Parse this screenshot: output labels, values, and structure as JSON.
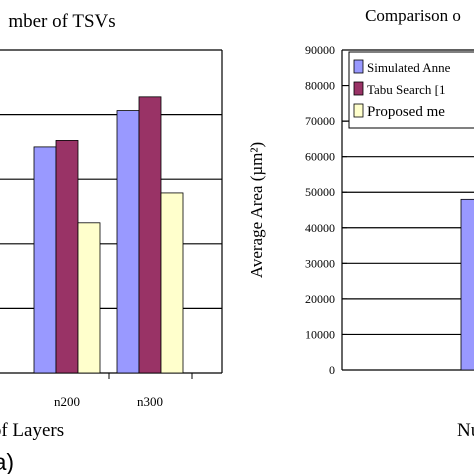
{
  "colors": {
    "series1": "#9999ff",
    "series2": "#993366",
    "series3": "#ffffcc",
    "grid": "#000000"
  },
  "chart_data": [
    {
      "type": "bar",
      "title": "mber of TSVs",
      "xlabel": "of Layers",
      "ylabel": "",
      "categories": [
        "n200",
        "n300"
      ],
      "series": [
        {
          "values": [
            2800,
            3250
          ]
        },
        {
          "values": [
            2880,
            3420
          ]
        },
        {
          "values": [
            1860,
            2230
          ]
        }
      ],
      "ylim": [
        0,
        4000
      ],
      "grid": true
    },
    {
      "type": "bar",
      "title": "Comparison o",
      "xlabel": "Nu",
      "ylabel": "Average Area (µm²)",
      "yticks": [
        "0",
        "10000",
        "20000",
        "30000",
        "40000",
        "50000",
        "60000",
        "70000",
        "80000",
        "90000"
      ],
      "series": [
        {
          "name": "Simulated Anne",
          "values": [
            48000
          ]
        },
        {
          "name": "Tabu Search [1",
          "values": []
        },
        {
          "name": "Proposed me",
          "values": []
        }
      ],
      "ylim": [
        0,
        90000
      ],
      "legend": "top-right",
      "grid": true
    }
  ],
  "panel_label": "(a)"
}
